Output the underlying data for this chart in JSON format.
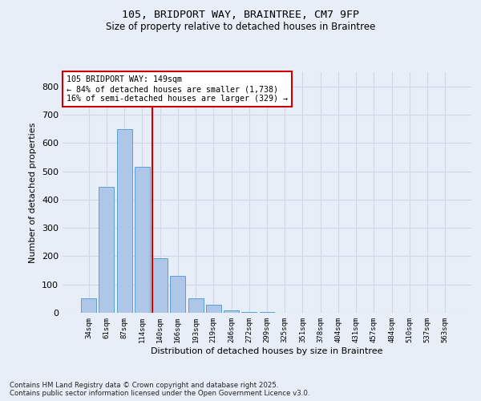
{
  "title_line1": "105, BRIDPORT WAY, BRAINTREE, CM7 9FP",
  "title_line2": "Size of property relative to detached houses in Braintree",
  "xlabel": "Distribution of detached houses by size in Braintree",
  "ylabel": "Number of detached properties",
  "categories": [
    "34sqm",
    "61sqm",
    "87sqm",
    "114sqm",
    "140sqm",
    "166sqm",
    "193sqm",
    "219sqm",
    "246sqm",
    "272sqm",
    "299sqm",
    "325sqm",
    "351sqm",
    "378sqm",
    "404sqm",
    "431sqm",
    "457sqm",
    "484sqm",
    "510sqm",
    "537sqm",
    "563sqm"
  ],
  "values": [
    50,
    445,
    650,
    515,
    193,
    130,
    50,
    27,
    8,
    2,
    2,
    0,
    0,
    0,
    0,
    0,
    0,
    0,
    0,
    0,
    0
  ],
  "bar_color": "#aec6e8",
  "bar_edge_color": "#5a9fd4",
  "grid_color": "#d0d8e8",
  "bg_color": "#e8eef8",
  "vline_x": 3.55,
  "vline_color": "#cc0000",
  "annotation_box_text": "105 BRIDPORT WAY: 149sqm\n← 84% of detached houses are smaller (1,738)\n16% of semi-detached houses are larger (329) →",
  "ylim": [
    0,
    850
  ],
  "yticks": [
    0,
    100,
    200,
    300,
    400,
    500,
    600,
    700,
    800
  ],
  "footnote1": "Contains HM Land Registry data © Crown copyright and database right 2025.",
  "footnote2": "Contains public sector information licensed under the Open Government Licence v3.0."
}
